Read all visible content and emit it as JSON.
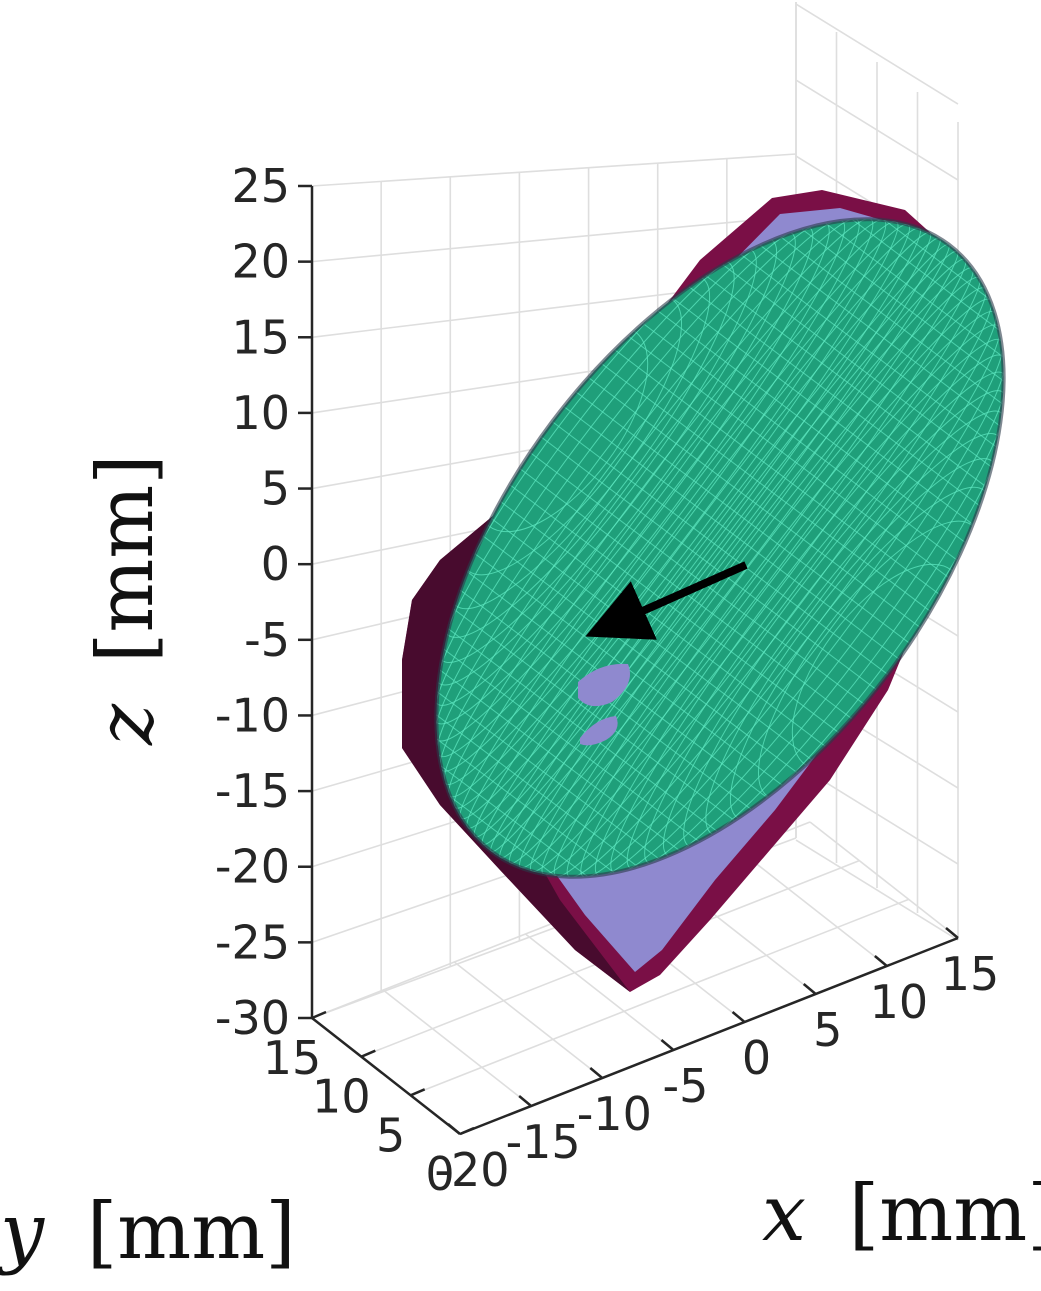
{
  "chart_data": {
    "type": "surface3d",
    "title": "",
    "xlabel_var": "x",
    "xlabel_unit": "[mm]",
    "ylabel_var": "y",
    "ylabel_unit": "[mm]",
    "zlabel_var": "z",
    "zlabel_unit": "[mm]",
    "x_ticks": [
      "-20",
      "-15",
      "-10",
      "-5",
      "0",
      "5",
      "10",
      "15"
    ],
    "y_ticks": [
      "0",
      "5",
      "10",
      "15"
    ],
    "z_ticks": [
      "25",
      "20",
      "15",
      "10",
      "5",
      "0",
      "-5",
      "-10",
      "-15",
      "-20",
      "-25",
      "-30"
    ],
    "xlim": [
      -20,
      15
    ],
    "ylim": [
      0,
      15
    ],
    "zlim": [
      -30,
      25
    ],
    "grid": true,
    "legend": "none",
    "annotations": [
      "arrow"
    ],
    "colors": {
      "outer_surface": "#7a0f46",
      "middle_surface": "#8f89cf",
      "ellipsoid": "#1f9f7a",
      "ellipsoid_mesh": "#5fe8c2",
      "arrow": "#000000",
      "grid": "#dedede",
      "axis": "#262626"
    }
  }
}
